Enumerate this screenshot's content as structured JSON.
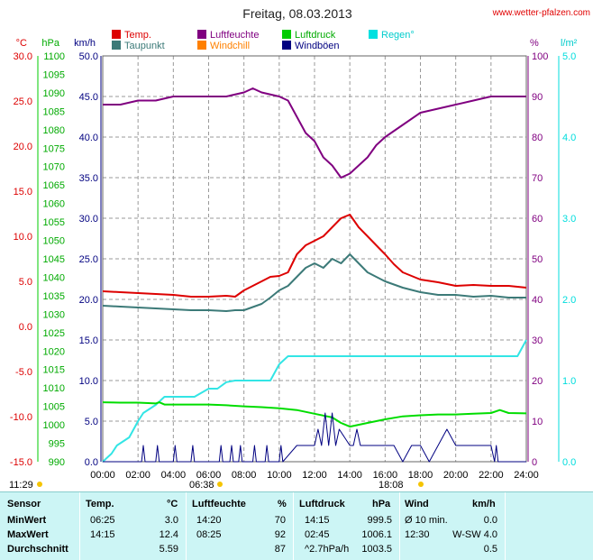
{
  "header": {
    "title": "Freitag, 08.03.2013",
    "site": "www.wetter-pfalzen.com"
  },
  "legend": [
    {
      "label": "Temp.",
      "color": "#dd0000"
    },
    {
      "label": "Taupunkt",
      "color": "#3c7a78"
    },
    {
      "label": "Luftfeuchte",
      "color": "#800080"
    },
    {
      "label": "Windchill",
      "color": "#ff8000"
    },
    {
      "label": "Luftdruck",
      "color": "#00cc00"
    },
    {
      "label": "Windböen",
      "color": "#000080"
    },
    {
      "label": "Regen°",
      "color": "#00e0e0"
    }
  ],
  "axes": {
    "temp": {
      "unit": "°C",
      "ticks": [
        "30.0",
        "25.0",
        "20.0",
        "15.0",
        "10.0",
        "5.0",
        "0.0",
        "-5.0",
        "-10.0",
        "-15.0"
      ],
      "color": "#dd0000"
    },
    "pressure": {
      "unit": "hPa",
      "ticks": [
        "1100",
        "1095",
        "1090",
        "1085",
        "1080",
        "1075",
        "1070",
        "1065",
        "1060",
        "1055",
        "1050",
        "1045",
        "1040",
        "1035",
        "1030",
        "1025",
        "1020",
        "1015",
        "1010",
        "1005",
        "1000",
        "995",
        "990"
      ],
      "color": "#00aa00"
    },
    "wind": {
      "unit": "km/h",
      "ticks": [
        "50.0",
        "45.0",
        "40.0",
        "35.0",
        "30.0",
        "25.0",
        "20.0",
        "15.0",
        "10.0",
        "5.0",
        "0.0"
      ],
      "color": "#000080"
    },
    "humidity": {
      "unit": "%",
      "ticks": [
        "100",
        "90",
        "80",
        "70",
        "60",
        "50",
        "40",
        "30",
        "20",
        "10",
        "0"
      ],
      "color": "#800080"
    },
    "rain": {
      "unit": "l/m²",
      "ticks": [
        "5.0",
        "4.0",
        "3.0",
        "2.0",
        "1.0",
        "0.0"
      ],
      "color": "#00dddd"
    },
    "time": {
      "ticks": [
        "00:00",
        "02:00",
        "04:00",
        "06:00",
        "08:00",
        "10:00",
        "12:00",
        "14:00",
        "16:00",
        "18:00",
        "20:00",
        "22:00",
        "24:00"
      ]
    }
  },
  "sun": {
    "moon_left": "11:29",
    "sunrise": "06:38",
    "sunset": "18:08"
  },
  "chart_data": {
    "type": "line",
    "title": "Freitag, 08.03.2013",
    "x_unit": "hours",
    "xlim": [
      0,
      24
    ],
    "series": [
      {
        "name": "Temp.",
        "axis": "°C",
        "ylim": [
          -15,
          30
        ],
        "x": [
          0,
          1,
          2,
          3,
          4,
          5,
          6,
          7,
          7.5,
          8,
          9,
          9.5,
          10,
          10.5,
          11,
          11.5,
          12,
          12.5,
          13,
          13.5,
          14,
          14.5,
          15,
          15.5,
          16,
          16.5,
          17,
          18,
          19,
          20,
          21,
          22,
          23,
          24
        ],
        "y": [
          3.9,
          3.8,
          3.7,
          3.6,
          3.5,
          3.3,
          3.3,
          3.4,
          3.3,
          4.0,
          5.0,
          5.5,
          5.6,
          6.0,
          8.0,
          9.0,
          9.5,
          10.0,
          11.0,
          12.0,
          12.4,
          11.0,
          10.0,
          9.0,
          8.0,
          6.9,
          6.0,
          5.2,
          4.9,
          4.5,
          4.6,
          4.5,
          4.5,
          4.3
        ]
      },
      {
        "name": "Taupunkt",
        "axis": "°C",
        "ylim": [
          -15,
          30
        ],
        "x": [
          0,
          1,
          2,
          3,
          4,
          5,
          6,
          7,
          7.5,
          8,
          9,
          9.5,
          10,
          10.5,
          11,
          11.5,
          12,
          12.5,
          13,
          13.5,
          14,
          14.5,
          15,
          15.5,
          16,
          17,
          18,
          19,
          20,
          21,
          22,
          23,
          24
        ],
        "y": [
          2.3,
          2.2,
          2.1,
          2.0,
          1.9,
          1.8,
          1.8,
          1.7,
          1.8,
          1.8,
          2.5,
          3.2,
          4.0,
          4.5,
          5.5,
          6.5,
          7.0,
          6.5,
          7.5,
          7.0,
          8.0,
          7.0,
          6.0,
          5.5,
          5.0,
          4.3,
          3.8,
          3.5,
          3.5,
          3.3,
          3.4,
          3.2,
          3.2
        ]
      },
      {
        "name": "Luftfeuchte",
        "axis": "%",
        "ylim": [
          0,
          100
        ],
        "x": [
          0,
          1,
          2,
          3,
          4,
          5,
          6,
          7,
          8,
          8.5,
          9,
          10,
          10.5,
          11,
          11.5,
          12,
          12.5,
          13,
          13.5,
          14,
          14.5,
          15,
          15.5,
          16,
          17,
          18,
          19,
          20,
          21,
          22,
          23,
          24
        ],
        "y": [
          88,
          88,
          89,
          89,
          90,
          90,
          90,
          90,
          91,
          92,
          91,
          90,
          89,
          85,
          81,
          79,
          75,
          73,
          70,
          71,
          73,
          75,
          78,
          80,
          83,
          86,
          87,
          88,
          89,
          90,
          90,
          90
        ]
      },
      {
        "name": "Luftdruck",
        "axis": "hPa",
        "ylim": [
          990,
          1100
        ],
        "x": [
          0,
          1,
          2,
          3,
          3.2,
          3.5,
          4,
          5,
          6,
          7,
          8,
          9,
          10,
          11,
          12,
          13,
          13.5,
          14,
          15,
          16,
          17,
          18,
          19,
          20,
          21,
          22,
          22.5,
          23,
          24
        ],
        "y": [
          1006.1,
          1006.0,
          1006.0,
          1005.8,
          1006.1,
          1005.5,
          1005.5,
          1005.5,
          1005.5,
          1005.3,
          1005.0,
          1004.8,
          1004.5,
          1004.0,
          1003.0,
          1002.0,
          1000.5,
          999.5,
          1000.5,
          1001.5,
          1002.3,
          1002.6,
          1002.8,
          1002.8,
          1003.0,
          1003.2,
          1004.0,
          1003.2,
          1003.1
        ]
      },
      {
        "name": "Regen°",
        "axis": "l/m²",
        "ylim": [
          0,
          5
        ],
        "x": [
          0,
          0.5,
          0.8,
          1.5,
          2,
          2.3,
          3,
          3.5,
          4,
          5,
          5.2,
          6,
          6.5,
          7,
          7.5,
          8,
          9,
          9.5,
          10,
          10.5,
          11,
          12,
          13,
          14,
          15,
          16,
          17,
          18,
          19,
          20,
          21,
          22,
          23,
          23.5,
          24
        ],
        "y": [
          0,
          0.1,
          0.2,
          0.3,
          0.5,
          0.6,
          0.7,
          0.8,
          0.8,
          0.8,
          0.8,
          0.9,
          0.9,
          0.98,
          1.0,
          1.0,
          1.0,
          1.0,
          1.2,
          1.3,
          1.3,
          1.3,
          1.3,
          1.3,
          1.3,
          1.3,
          1.3,
          1.3,
          1.3,
          1.3,
          1.3,
          1.3,
          1.3,
          1.3,
          1.5
        ]
      },
      {
        "name": "Windböen",
        "axis": "km/h",
        "ylim": [
          0,
          50
        ],
        "x": [
          0,
          2.2,
          2.3,
          2.4,
          3,
          3.1,
          3.2,
          4,
          4.1,
          4.2,
          5,
          5.1,
          5.2,
          6.6,
          6.7,
          6.8,
          7.2,
          7.3,
          7.4,
          7.7,
          7.8,
          7.9,
          8.5,
          8.6,
          8.7,
          9.2,
          9.3,
          9.4,
          10,
          10.1,
          10.2,
          11,
          11.5,
          12,
          12.2,
          12.4,
          12.6,
          12.8,
          13,
          13.2,
          13.4,
          14,
          14.2,
          14.4,
          14.6,
          15,
          15.5,
          16,
          16.5,
          17,
          17.5,
          18,
          18.5,
          19,
          19.5,
          20,
          21,
          22,
          22.2,
          22.3,
          22.4,
          23,
          24
        ],
        "y": [
          0,
          0,
          2,
          0,
          0,
          2,
          0,
          0,
          2,
          0,
          0,
          2,
          0,
          0,
          2,
          0,
          0,
          2,
          0,
          0,
          2,
          0,
          0,
          2,
          0,
          0,
          2,
          0,
          0,
          2,
          0,
          2,
          2,
          2,
          4,
          2,
          6,
          2,
          6,
          2,
          4,
          2,
          2,
          4,
          2,
          2,
          2,
          2,
          2,
          0,
          2,
          2,
          0,
          2,
          4,
          2,
          2,
          2,
          0,
          2,
          0,
          0,
          0
        ]
      }
    ]
  },
  "stats": {
    "headers": {
      "sensor": "Sensor",
      "temp": "Temp.",
      "temp_unit": "°C",
      "hum": "Luftfeuchte",
      "hum_unit": "%",
      "press": "Luftdruck",
      "press_unit": "hPa",
      "wind": "Wind",
      "wind_unit": "km/h"
    },
    "rows": [
      {
        "label": "MinWert",
        "temp_time": "06:25",
        "temp_val": "3.0",
        "hum_time": "14:20",
        "hum_val": "70",
        "press_time": "14:15",
        "press_val": "999.5",
        "wind_time": "Ø 10 min.",
        "wind_val": "0.0"
      },
      {
        "label": "MaxWert",
        "temp_time": "14:15",
        "temp_val": "12.4",
        "hum_time": "08:25",
        "hum_val": "92",
        "press_time": "02:45",
        "press_val": "1006.1",
        "wind_time": "12:30",
        "wind_val": "W-SW 4.0"
      },
      {
        "label": "Durchschnitt",
        "temp_time": "",
        "temp_val": "5.59",
        "hum_time": "",
        "hum_val": "87",
        "press_time": "^2.7hPa/h",
        "press_val": "1003.5",
        "wind_time": "",
        "wind_val": "0.5"
      }
    ]
  }
}
